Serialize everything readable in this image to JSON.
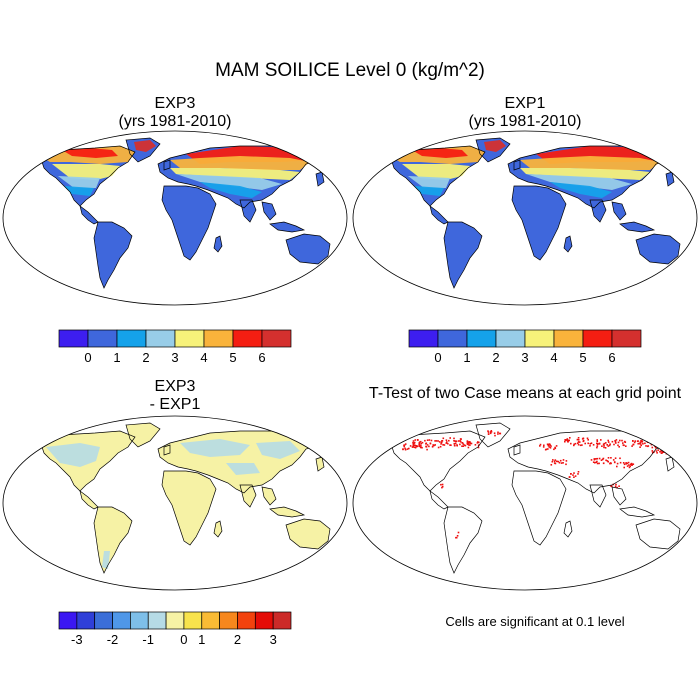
{
  "figure": {
    "main_title": "MAM SOILICE Level 0 (kg/m^2)"
  },
  "panels": [
    {
      "id": "exp3",
      "title_line1": "EXP3",
      "title_line2": "(yrs 1981-2010)",
      "kind": "absolute"
    },
    {
      "id": "exp1",
      "title_line1": "EXP1",
      "title_line2": "(yrs 1981-2010)",
      "kind": "absolute"
    },
    {
      "id": "diff",
      "title_line1": "EXP3",
      "title_line2": "- EXP1",
      "kind": "difference"
    },
    {
      "id": "ttest",
      "title_line1": "T-Test of two Case means at each grid point",
      "title_line2": "",
      "kind": "significance"
    }
  ],
  "colorbars": {
    "absolute": {
      "colors": [
        "#3d1ef0",
        "#3f67dc",
        "#15a2ea",
        "#98cde8",
        "#f7f27a",
        "#f9b33b",
        "#f41e12",
        "#d4302e"
      ],
      "tick_labels": [
        "0",
        "1",
        "2",
        "3",
        "4",
        "5",
        "6"
      ]
    },
    "difference": {
      "colors": [
        "#3b17f2",
        "#2f3fd8",
        "#3b6ed8",
        "#4f97e8",
        "#7ebfe9",
        "#b6dbe6",
        "#f6f2a5",
        "#f8e34c",
        "#f9bb35",
        "#f6871d",
        "#f2420d",
        "#e40c07",
        "#cc2a28"
      ],
      "tick_labels": [
        "-3",
        "-2",
        "-1",
        "0",
        "1",
        "2",
        "3"
      ]
    }
  },
  "map_colors": {
    "land_low": "#3f67dc",
    "land_mid": "#15a2ea",
    "land_light": "#98cde8",
    "land_yellow": "#f7f27a",
    "land_orange": "#f9b33b",
    "land_red": "#f41e12",
    "land_darkred": "#d4302e",
    "diff_land": "#f6f2a5",
    "diff_blue": "#b6dbe6",
    "signif": "#ee1010",
    "outline": "#000000"
  },
  "significance_note": "Cells are significant at 0.1 level"
}
